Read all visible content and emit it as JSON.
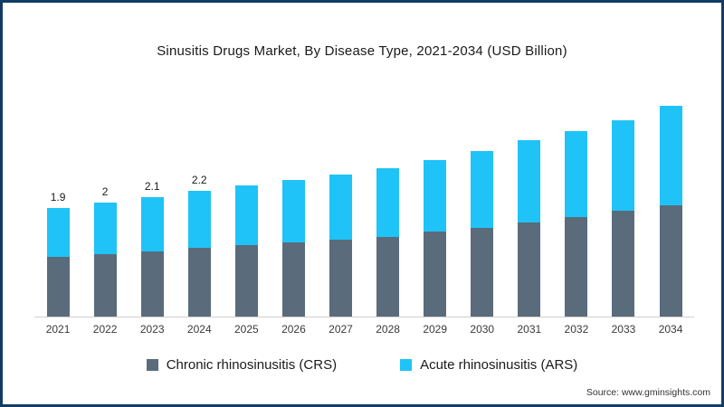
{
  "title": "Sinusitis Drugs Market, By Disease Type, 2021-2034 (USD Billion)",
  "source": "Source: www.gminsights.com",
  "colors": {
    "frame_border": "#123c63",
    "crs": "#5a6b7b",
    "ars": "#1fc3f7",
    "axis_line": "#cfcfcf"
  },
  "legend": [
    {
      "label": "Chronic rhinosinusitis (CRS)",
      "color": "#5a6b7b"
    },
    {
      "label": "Acute rhinosinusitis (ARS)",
      "color": "#1fc3f7"
    }
  ],
  "chart_data": {
    "type": "bar",
    "stacked": true,
    "title": "Sinusitis Drugs Market, By Disease Type, 2021-2034 (USD Billion)",
    "xlabel": "",
    "ylabel": "USD Billion",
    "ylim": [
      0,
      4
    ],
    "grid": false,
    "legend_position": "bottom",
    "categories": [
      "2021",
      "2022",
      "2023",
      "2024",
      "2025",
      "2026",
      "2027",
      "2028",
      "2029",
      "2030",
      "2031",
      "2032",
      "2033",
      "2034"
    ],
    "series": [
      {
        "name": "Chronic rhinosinusitis (CRS)",
        "color": "#5a6b7b",
        "values": [
          1.05,
          1.1,
          1.15,
          1.2,
          1.25,
          1.3,
          1.35,
          1.4,
          1.5,
          1.55,
          1.65,
          1.75,
          1.85,
          1.95
        ]
      },
      {
        "name": "Acute rhinosinusitis (ARS)",
        "color": "#1fc3f7",
        "values": [
          0.85,
          0.9,
          0.95,
          1.0,
          1.05,
          1.1,
          1.15,
          1.2,
          1.25,
          1.35,
          1.45,
          1.5,
          1.6,
          1.75
        ]
      }
    ],
    "totals": [
      1.9,
      2.0,
      2.1,
      2.2,
      2.3,
      2.4,
      2.5,
      2.6,
      2.75,
      2.9,
      3.1,
      3.25,
      3.45,
      3.7
    ],
    "total_labels": [
      "1.9",
      "2",
      "2.1",
      "2.2",
      "",
      "",
      "",
      "",
      "",
      "",
      "",
      "",
      "",
      ""
    ]
  }
}
